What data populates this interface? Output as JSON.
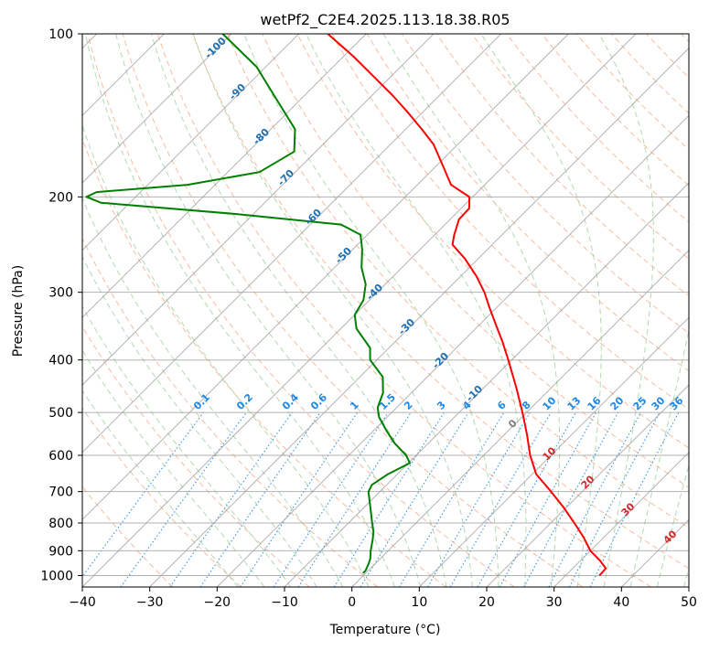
{
  "chart_data": {
    "type": "skew-t log-p",
    "title": "wetPf2_C2E4.2025.113.18.38.R05",
    "xlabel": "Temperature (°C)",
    "ylabel": "Pressure (hPa)",
    "xlim": [
      -40,
      50
    ],
    "ylim": [
      1050,
      100
    ],
    "yscale": "log",
    "x_ticks": [
      -40,
      -30,
      -20,
      -10,
      0,
      10,
      20,
      30,
      40,
      50
    ],
    "y_ticks": [
      100,
      200,
      300,
      400,
      500,
      600,
      700,
      800,
      900,
      1000
    ],
    "skew_degrees": 45,
    "grid": true,
    "series": [
      {
        "kind": "temperature",
        "color": "#ff0000",
        "points": [
          [
            1000,
            35.0
          ],
          [
            990,
            35.0
          ],
          [
            970,
            34.9
          ],
          [
            940,
            33.0
          ],
          [
            900,
            30.0
          ],
          [
            850,
            27.0
          ],
          [
            800,
            23.5
          ],
          [
            750,
            19.7
          ],
          [
            700,
            15.4
          ],
          [
            650,
            10.6
          ],
          [
            600,
            6.9
          ],
          [
            550,
            3.4
          ],
          [
            500,
            -0.6
          ],
          [
            450,
            -5.2
          ],
          [
            400,
            -10.5
          ],
          [
            370,
            -14.1
          ],
          [
            350,
            -16.8
          ],
          [
            320,
            -21.1
          ],
          [
            300,
            -24.1
          ],
          [
            280,
            -27.7
          ],
          [
            260,
            -32.0
          ],
          [
            245,
            -35.9
          ],
          [
            235,
            -37.1
          ],
          [
            220,
            -38.7
          ],
          [
            210,
            -38.8
          ],
          [
            200,
            -40.5
          ],
          [
            190,
            -45.0
          ],
          [
            175,
            -49.1
          ],
          [
            160,
            -53.6
          ],
          [
            150,
            -57.6
          ],
          [
            140,
            -62.0
          ],
          [
            130,
            -66.9
          ],
          [
            120,
            -72.5
          ],
          [
            110,
            -78.6
          ],
          [
            100,
            -85.7
          ]
        ]
      },
      {
        "kind": "dewpoint",
        "color": "#008000",
        "points": [
          [
            990,
            -0.4
          ],
          [
            980,
            -0.4
          ],
          [
            950,
            -1.0
          ],
          [
            930,
            -1.5
          ],
          [
            900,
            -2.6
          ],
          [
            860,
            -3.9
          ],
          [
            830,
            -5.0
          ],
          [
            800,
            -6.5
          ],
          [
            750,
            -9.0
          ],
          [
            700,
            -11.7
          ],
          [
            680,
            -12.2
          ],
          [
            650,
            -11.4
          ],
          [
            620,
            -9.8
          ],
          [
            600,
            -11.5
          ],
          [
            570,
            -15.0
          ],
          [
            540,
            -18.1
          ],
          [
            510,
            -21.2
          ],
          [
            490,
            -22.8
          ],
          [
            460,
            -24.2
          ],
          [
            430,
            -26.6
          ],
          [
            400,
            -31.0
          ],
          [
            380,
            -32.8
          ],
          [
            350,
            -37.7
          ],
          [
            330,
            -40.0
          ],
          [
            310,
            -40.9
          ],
          [
            290,
            -42.9
          ],
          [
            270,
            -46.0
          ],
          [
            250,
            -48.6
          ],
          [
            235,
            -51.0
          ],
          [
            225,
            -55.4
          ],
          [
            215,
            -72.7
          ],
          [
            205,
            -94.3
          ],
          [
            200,
            -97.3
          ],
          [
            196,
            -96.5
          ],
          [
            190,
            -84.1
          ],
          [
            180,
            -75.3
          ],
          [
            165,
            -73.2
          ],
          [
            150,
            -76.4
          ],
          [
            130,
            -84.5
          ],
          [
            115,
            -91.4
          ],
          [
            100,
            -101.3
          ]
        ]
      }
    ],
    "dry_adiabat_labels": [
      "-100",
      "-90",
      "-80",
      "-70",
      "-60",
      "-50",
      "-40",
      "-30",
      "-20",
      "-10"
    ],
    "moist_adiabat_labels": [
      "0",
      "10",
      "20",
      "30",
      "40"
    ],
    "mixing_ratio_labels": [
      "0.1",
      "0.2",
      "0.4",
      "0.6",
      "1",
      "1.5",
      "2",
      "3",
      "4",
      "6",
      "8",
      "10",
      "13",
      "16",
      "20",
      "25",
      "30",
      "36"
    ],
    "colors": {
      "temperature": "#ff0000",
      "dewpoint": "#008000",
      "isotherms": "#a0a0a0",
      "isobars": "#a0a0a0",
      "dry_adiabats": "#f4a582",
      "moist_adiabats": "#a6d1a6",
      "mixing_ratio": "#1e88e5",
      "dry_label": "#1f6fb0",
      "moist_label": "#d62728"
    }
  }
}
